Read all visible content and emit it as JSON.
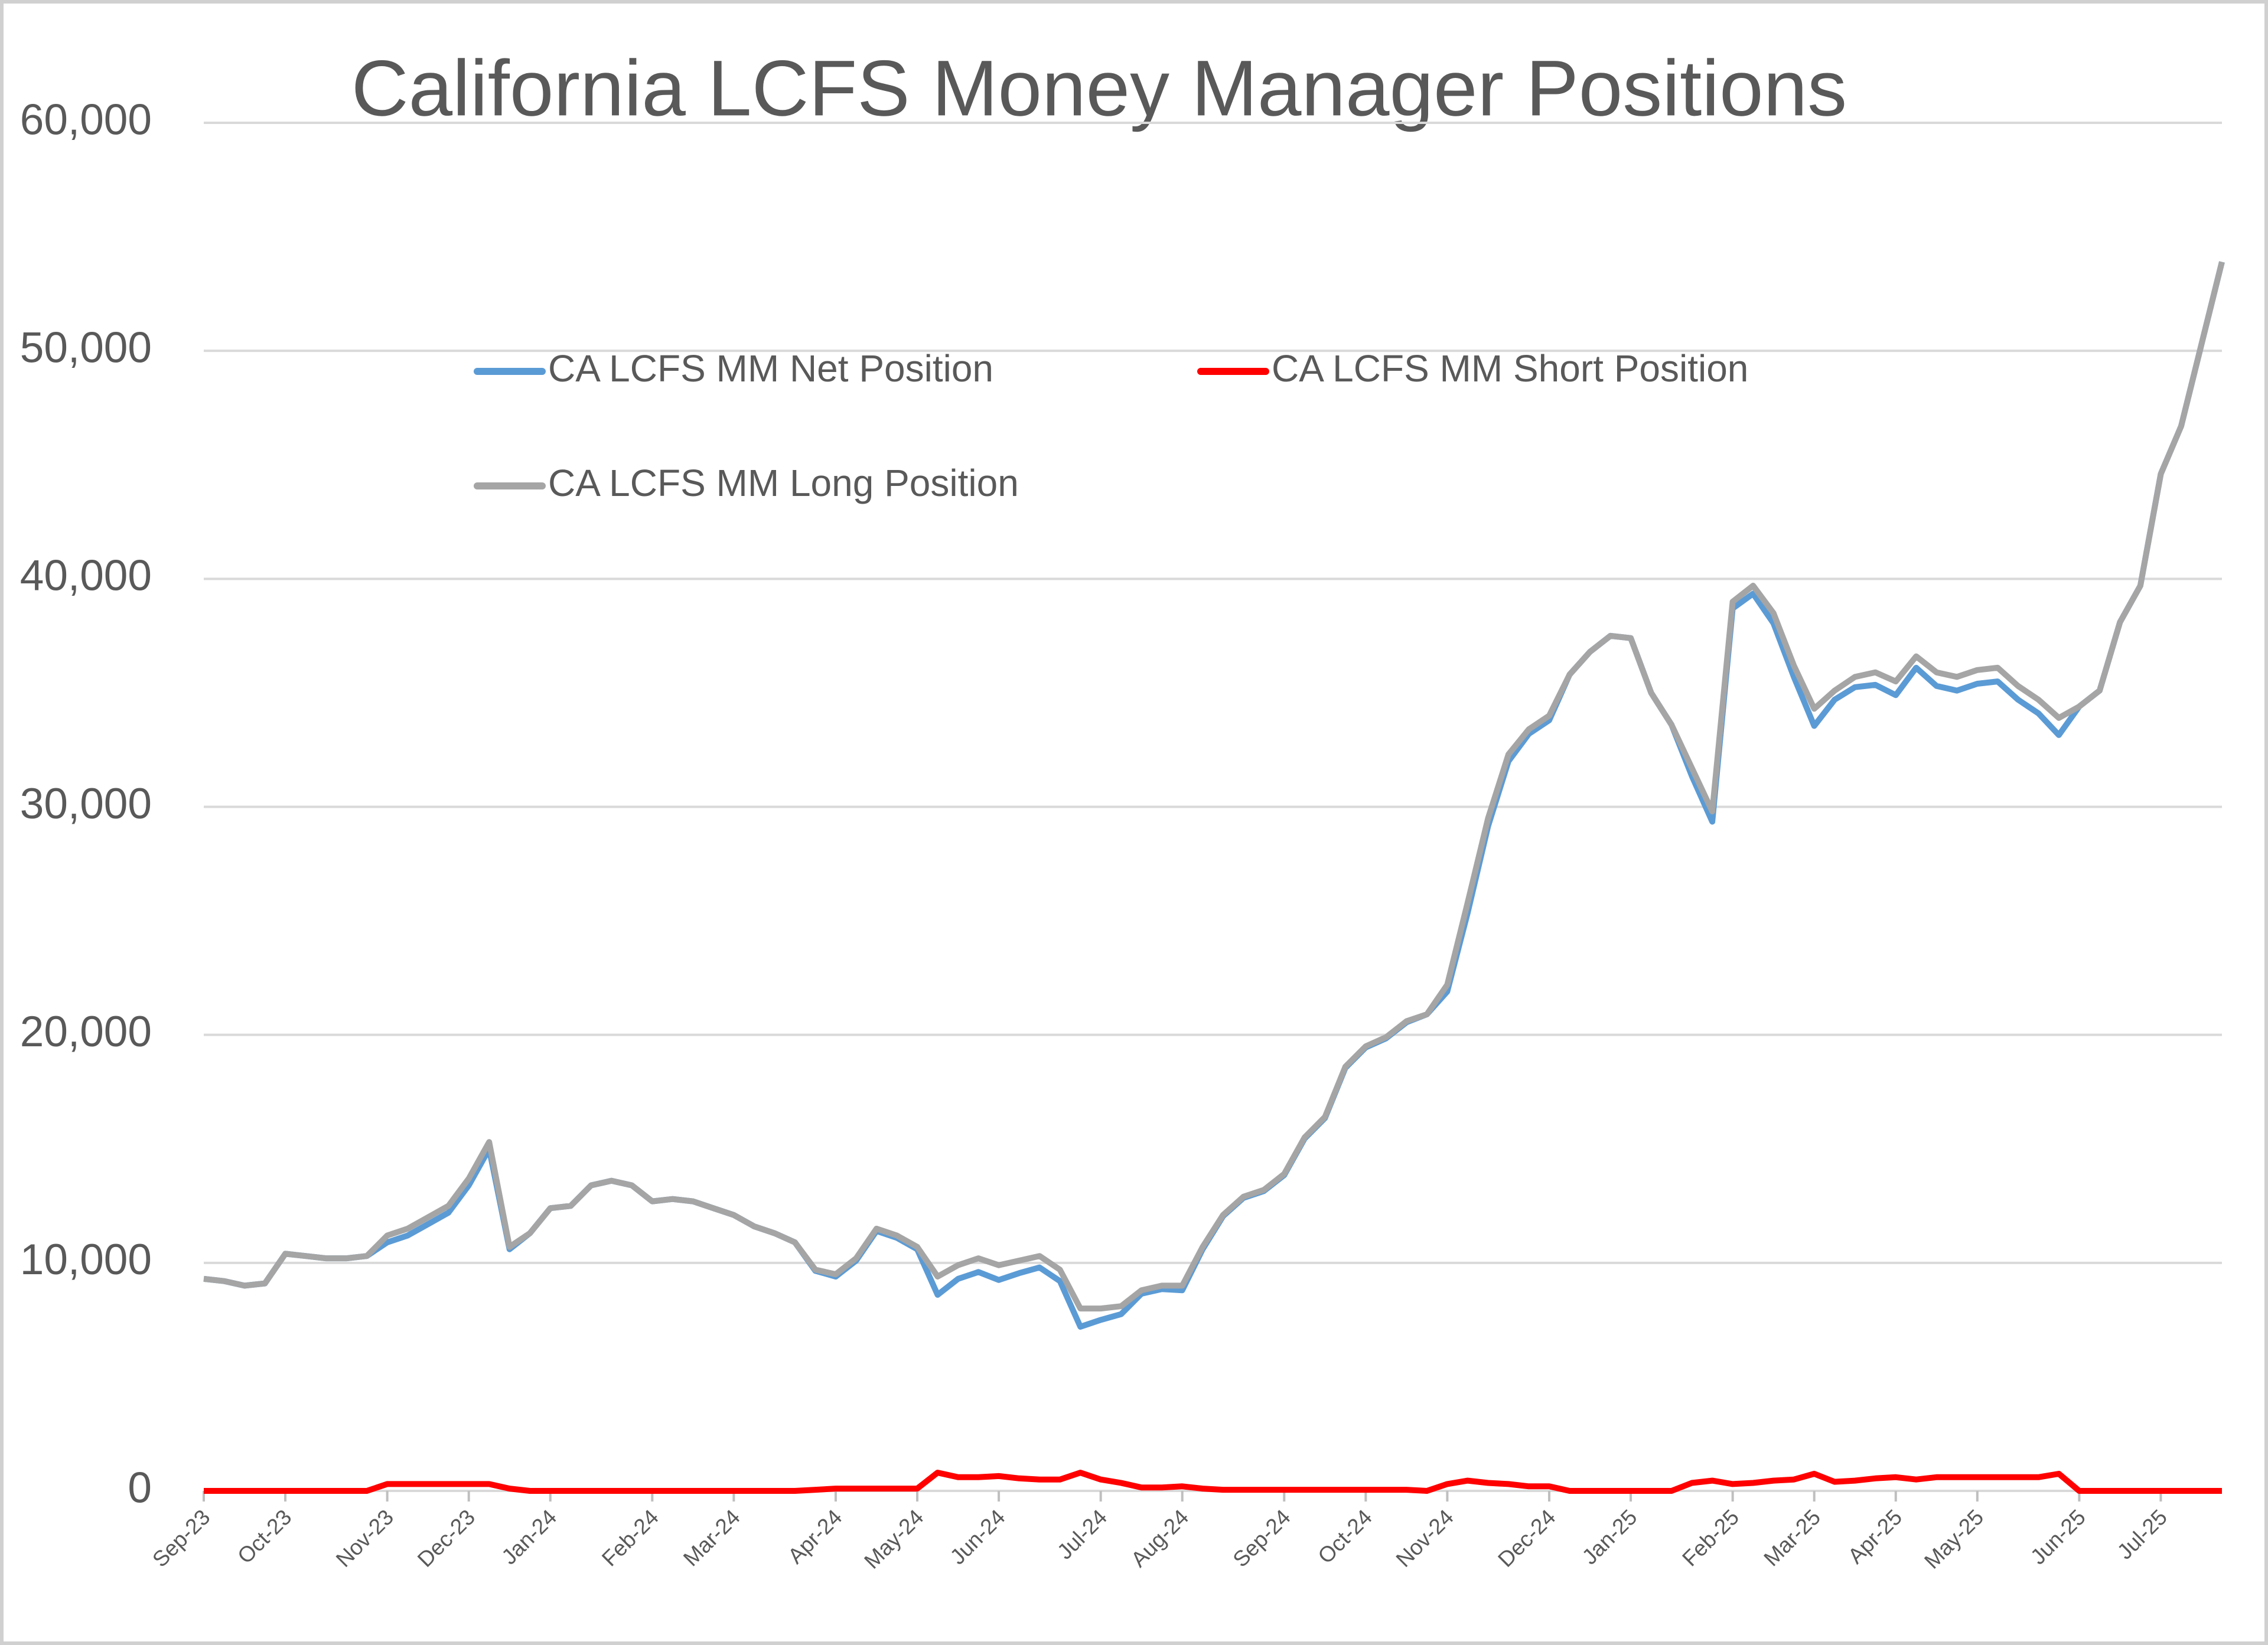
{
  "chart_data": {
    "type": "line",
    "title": "California LCFS Money Manager Positions",
    "categories": [
      "Sep-23",
      null,
      null,
      null,
      "Oct-23",
      null,
      null,
      null,
      null,
      "Nov-23",
      null,
      null,
      null,
      "Dec-23",
      null,
      null,
      null,
      "Jan-24",
      null,
      null,
      null,
      null,
      "Feb-24",
      null,
      null,
      null,
      "Mar-24",
      null,
      null,
      null,
      null,
      "Apr-24",
      null,
      null,
      null,
      "May-24",
      null,
      null,
      null,
      "Jun-24",
      null,
      null,
      null,
      null,
      "Jul-24",
      null,
      null,
      null,
      "Aug-24",
      null,
      null,
      null,
      null,
      "Sep-24",
      null,
      null,
      null,
      "Oct-24",
      null,
      null,
      null,
      "Nov-24",
      null,
      null,
      null,
      null,
      "Dec-24",
      null,
      null,
      null,
      "Jan-25",
      null,
      null,
      null,
      null,
      "Feb-25",
      null,
      null,
      null,
      "Mar-25",
      null,
      null,
      null,
      "Apr-25",
      null,
      null,
      null,
      "May-25",
      null,
      null,
      null,
      null,
      "Jun-25",
      null,
      null,
      null,
      "Jul-25",
      null,
      null,
      null
    ],
    "series": [
      {
        "name": "CA LCFS MM Net Position",
        "color": "#5b9bd5",
        "values": [
          9300,
          9200,
          9000,
          9100,
          10400,
          10300,
          10200,
          10200,
          10300,
          10900,
          11200,
          11700,
          12200,
          13400,
          15000,
          10600,
          11300,
          12400,
          12500,
          13400,
          13600,
          13400,
          12700,
          12800,
          12700,
          12400,
          12100,
          11600,
          11300,
          10900,
          9650,
          9400,
          10100,
          11400,
          11100,
          10600,
          8600,
          9300,
          9600,
          9250,
          9550,
          9800,
          9200,
          7200,
          7500,
          7750,
          8650,
          8850,
          8800,
          10600,
          12050,
          12850,
          13150,
          13850,
          15450,
          16350,
          18550,
          19450,
          19850,
          20550,
          20900,
          21900,
          25350,
          29150,
          32000,
          33200,
          33800,
          35800,
          36800,
          37500,
          37400,
          35000,
          33600,
          31350,
          29350,
          38700,
          39350,
          38050,
          35700,
          33550,
          34700,
          35250,
          35350,
          34900,
          36100,
          35300,
          35100,
          35400,
          35500,
          34700,
          34100,
          33150,
          34400,
          35100,
          38100,
          39700,
          44600,
          46700,
          50300,
          53900
        ]
      },
      {
        "name": "CA LCFS MM Short Position",
        "color": "#ff0000",
        "values": [
          0,
          0,
          0,
          0,
          0,
          0,
          0,
          0,
          0,
          300,
          300,
          300,
          300,
          300,
          300,
          100,
          0,
          0,
          0,
          0,
          0,
          0,
          0,
          0,
          0,
          0,
          0,
          0,
          0,
          0,
          50,
          100,
          100,
          100,
          100,
          100,
          800,
          600,
          600,
          650,
          550,
          500,
          500,
          800,
          500,
          350,
          150,
          150,
          200,
          100,
          50,
          50,
          50,
          50,
          50,
          50,
          50,
          50,
          50,
          50,
          0,
          300,
          450,
          350,
          300,
          200,
          200,
          0,
          0,
          0,
          0,
          0,
          0,
          350,
          450,
          300,
          350,
          450,
          500,
          750,
          400,
          450,
          550,
          600,
          500,
          600,
          600,
          600,
          600,
          600,
          600,
          750,
          0,
          0,
          0,
          0,
          0,
          0,
          0,
          0
        ]
      },
      {
        "name": "CA LCFS MM Long Position",
        "color": "#a5a5a5",
        "values": [
          9300,
          9200,
          9000,
          9100,
          10400,
          10300,
          10200,
          10200,
          10300,
          11200,
          11500,
          12000,
          12500,
          13700,
          15300,
          10700,
          11300,
          12400,
          12500,
          13400,
          13600,
          13400,
          12700,
          12800,
          12700,
          12400,
          12100,
          11600,
          11300,
          10900,
          9700,
          9500,
          10200,
          11500,
          11200,
          10700,
          9400,
          9900,
          10200,
          9900,
          10100,
          10300,
          9700,
          8000,
          8000,
          8100,
          8800,
          9000,
          9000,
          10700,
          12100,
          12900,
          13200,
          13900,
          15500,
          16400,
          18600,
          19500,
          19900,
          20600,
          20900,
          22200,
          25800,
          29500,
          32300,
          33400,
          34000,
          35800,
          36800,
          37500,
          37400,
          35000,
          33600,
          31700,
          29800,
          39000,
          39700,
          38500,
          36200,
          34300,
          35100,
          35700,
          35900,
          35500,
          36600,
          35900,
          35700,
          36000,
          36100,
          35300,
          34700,
          33900,
          34400,
          35100,
          38100,
          39700,
          44600,
          46700,
          50300,
          53900
        ]
      }
    ],
    "ylim": [
      0,
      60000
    ],
    "yticks": [
      0,
      {
        "value": 10000,
        "label": "10,000"
      },
      {
        "value": 20000,
        "label": "20,000"
      },
      {
        "value": 30000,
        "label": "30,000"
      },
      {
        "value": 40000,
        "label": "40,000"
      },
      {
        "value": 50000,
        "label": "50,000"
      },
      {
        "value": 60000,
        "label": "60,000"
      }
    ],
    "grid": true
  }
}
